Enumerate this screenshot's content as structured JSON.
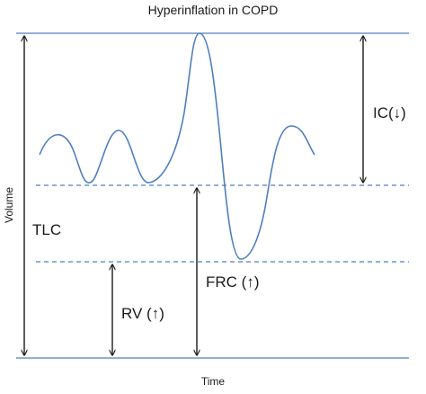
{
  "title": "Hyperinflation in COPD",
  "x_axis_label": "Time",
  "y_axis_label": "Volume",
  "labels": {
    "tlc": "TLC",
    "ic": "IC(↓)",
    "frc": "FRC (↑)",
    "rv": "RV (↑)"
  },
  "colors": {
    "reference_line": "#4f7fc0",
    "waveform": "#4f7fc0",
    "arrow": "#1a1a1a",
    "text": "#1a1a1a"
  }
}
